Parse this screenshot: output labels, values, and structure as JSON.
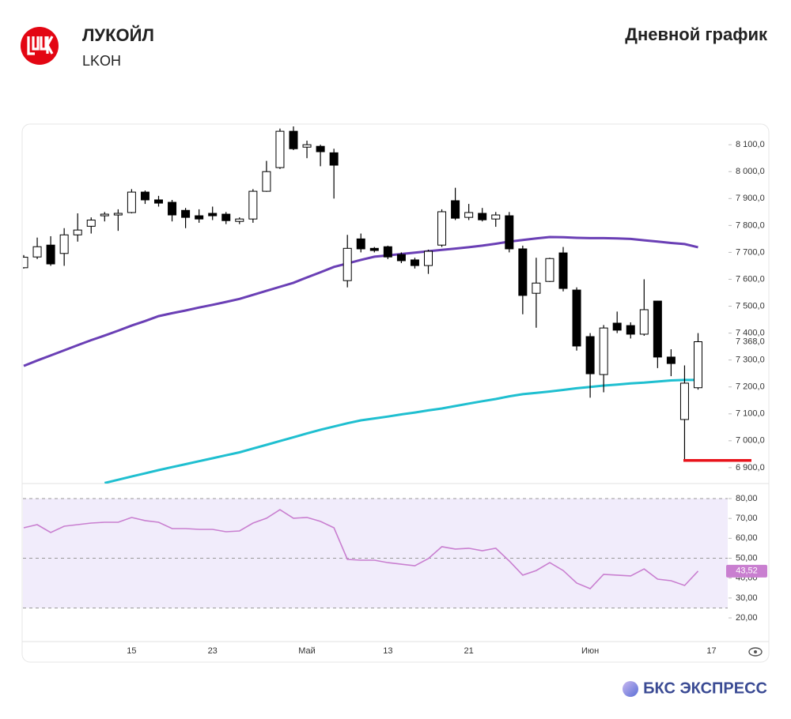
{
  "header": {
    "company": "ЛУКОЙЛ",
    "ticker": "LKOH",
    "chart_kind": "Дневной график"
  },
  "footer": {
    "brand": "БКС ЭКСПРЕСС"
  },
  "chart_data": [
    {
      "type": "candlestick",
      "categories": [
        null,
        null,
        null,
        null,
        null,
        null,
        null,
        null,
        "15",
        null,
        null,
        null,
        null,
        null,
        "23",
        null,
        null,
        null,
        null,
        null,
        null,
        "Май",
        null,
        null,
        null,
        null,
        null,
        "13",
        null,
        null,
        null,
        null,
        null,
        "21",
        null,
        null,
        null,
        null,
        null,
        null,
        null,
        null,
        "Июн",
        null,
        null,
        null,
        null,
        null,
        null,
        null,
        null
      ],
      "x_extra_label": "17",
      "open": [
        7643,
        7683,
        7727,
        7696,
        7765,
        7797,
        7836,
        7839,
        7848,
        7924,
        7895,
        7886,
        7856,
        7836,
        7845,
        7842,
        7815,
        7824,
        7927,
        8015,
        8150,
        8091,
        8094,
        8070,
        7595,
        7750,
        7715,
        7721,
        7692,
        7672,
        7651,
        7727,
        7892,
        7830,
        7845,
        7824,
        7836,
        7713,
        7548,
        7592,
        7698,
        7560,
        7387,
        7246,
        7437,
        7428,
        7396,
        7519,
        7311,
        7079,
        7197
      ],
      "high": [
        7690,
        7755,
        7760,
        7790,
        7845,
        7830,
        7850,
        7860,
        7935,
        7930,
        7910,
        7895,
        7865,
        7860,
        7870,
        7850,
        7830,
        7935,
        8040,
        8160,
        8170,
        8115,
        8100,
        8085,
        7765,
        7770,
        7720,
        7725,
        7700,
        7680,
        7710,
        7860,
        7940,
        7880,
        7865,
        7850,
        7850,
        7725,
        7680,
        7680,
        7720,
        7570,
        7400,
        7430,
        7480,
        7440,
        7600,
        7520,
        7340,
        7280,
        7400
      ],
      "low": [
        7640,
        7675,
        7650,
        7650,
        7740,
        7770,
        7815,
        7780,
        7845,
        7880,
        7870,
        7815,
        7790,
        7810,
        7820,
        7805,
        7805,
        7810,
        7925,
        8010,
        8080,
        8050,
        8020,
        7900,
        7570,
        7700,
        7700,
        7675,
        7660,
        7640,
        7620,
        7720,
        7820,
        7820,
        7815,
        7795,
        7700,
        7470,
        7420,
        7590,
        7555,
        7335,
        7160,
        7180,
        7400,
        7380,
        7390,
        7270,
        7240,
        6930,
        7190
      ],
      "close": [
        7682,
        7721,
        7657,
        7765,
        7783,
        7820,
        7842,
        7845,
        7924,
        7895,
        7883,
        7839,
        7830,
        7824,
        7836,
        7818,
        7824,
        7927,
        8000,
        8150,
        8085,
        8100,
        8074,
        8024,
        7715,
        7713,
        7707,
        7683,
        7669,
        7651,
        7704,
        7851,
        7827,
        7848,
        7821,
        7839,
        7713,
        7540,
        7586,
        7677,
        7566,
        7352,
        7249,
        7419,
        7411,
        7396,
        7487,
        7311,
        7287,
        7214,
        7368
      ],
      "up_color": "#ffffff",
      "down_color": "#000000",
      "overlays": [
        {
          "color": "#6a3fb5",
          "values": [
            7278,
            7298,
            7317,
            7336,
            7355,
            7374,
            7391,
            7409,
            7428,
            7445,
            7463,
            7474,
            7484,
            7495,
            7505,
            7516,
            7527,
            7542,
            7557,
            7572,
            7587,
            7607,
            7626,
            7646,
            7659,
            7672,
            7684,
            7689,
            7694,
            7699,
            7704,
            7709,
            7714,
            7719,
            7725,
            7732,
            7740,
            7746,
            7752,
            7757,
            7756,
            7754,
            7753,
            7753,
            7752,
            7750,
            7745,
            7740,
            7735,
            7731,
            7719
          ]
        },
        {
          "color": "#1fbfd0",
          "values": [
            null,
            null,
            null,
            null,
            null,
            null,
            6843,
            6855,
            6867,
            6879,
            6891,
            6902,
            6913,
            6924,
            6935,
            6946,
            6957,
            6971,
            6985,
            6999,
            7013,
            7027,
            7041,
            7053,
            7065,
            7076,
            7083,
            7090,
            7098,
            7105,
            7113,
            7120,
            7129,
            7138,
            7147,
            7155,
            7165,
            7173,
            7178,
            7183,
            7189,
            7195,
            7200,
            7205,
            7209,
            7213,
            7216,
            7220,
            7224,
            7226,
            7226
          ]
        }
      ],
      "level_line": {
        "value": 6927,
        "color": "#e8131b"
      },
      "last_price": {
        "value": 7368,
        "label": "7 368,0"
      },
      "ylim": [
        6841,
        8168
      ],
      "yticks": [
        {
          "value": 6900,
          "label": "6 900,0"
        },
        {
          "value": 7000,
          "label": "7 000,0"
        },
        {
          "value": 7100,
          "label": "7 100,0"
        },
        {
          "value": 7200,
          "label": "7 200,0"
        },
        {
          "value": 7300,
          "label": "7 300,0"
        },
        {
          "value": 7400,
          "label": "7 400,0"
        },
        {
          "value": 7500,
          "label": "7 500,0"
        },
        {
          "value": 7600,
          "label": "7 600,0"
        },
        {
          "value": 7700,
          "label": "7 700,0"
        },
        {
          "value": 7800,
          "label": "7 800,0"
        },
        {
          "value": 7900,
          "label": "7 900,0"
        },
        {
          "value": 8000,
          "label": "8 000,0"
        },
        {
          "value": 8100,
          "label": "8 100,0"
        }
      ]
    },
    {
      "type": "line",
      "color": "#c97fd0",
      "values": [
        65.3,
        66.9,
        62.9,
        66.1,
        66.9,
        67.7,
        68.1,
        68.1,
        70.5,
        68.9,
        68.1,
        64.9,
        64.9,
        64.5,
        64.5,
        63.3,
        63.7,
        67.7,
        70.1,
        74.4,
        70.1,
        70.5,
        68.5,
        65.3,
        49.4,
        49.0,
        49.0,
        47.8,
        47.0,
        46.2,
        49.8,
        55.8,
        54.6,
        55.0,
        53.8,
        55.0,
        48.6,
        41.5,
        43.8,
        47.8,
        43.8,
        37.5,
        34.7,
        41.9,
        41.5,
        41.1,
        44.6,
        39.5,
        38.7,
        36.3,
        43.52
      ],
      "last_value_label": "43,52",
      "band": [
        25,
        80
      ],
      "band_color": "#f1ecfb",
      "levels": [
        80,
        50,
        25
      ],
      "ylim": [
        8.1,
        86.75
      ],
      "yticks": [
        {
          "value": 20,
          "label": "20,00"
        },
        {
          "value": 30,
          "label": "30,00"
        },
        {
          "value": 40,
          "label": "40,00"
        },
        {
          "value": 50,
          "label": "50,00"
        },
        {
          "value": 60,
          "label": "60,00"
        },
        {
          "value": 70,
          "label": "70,00"
        },
        {
          "value": 80,
          "label": "80,00"
        }
      ]
    }
  ]
}
